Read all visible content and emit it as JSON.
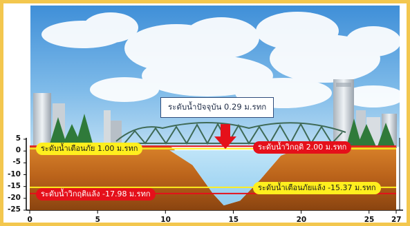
{
  "chart_data": {
    "type": "area",
    "title": "",
    "xlabel": "",
    "ylabel": "",
    "xlim": [
      0,
      27
    ],
    "ylim": [
      -25,
      5
    ],
    "x_ticks": [
      0,
      5,
      10,
      15,
      20,
      25,
      27
    ],
    "y_ticks": [
      5,
      0,
      -5,
      -10,
      -15,
      -20,
      -25
    ],
    "riverbed_profile": {
      "x": [
        0,
        10.3,
        12.0,
        13.5,
        14.3,
        15.5,
        17.0,
        18.5,
        19.5,
        27
      ],
      "y": [
        2.3,
        2.3,
        -6.0,
        -18.0,
        -23.0,
        -21.0,
        -12.0,
        -2.0,
        2.3,
        2.3
      ]
    },
    "current_level": 0.29,
    "reference_lines": [
      {
        "id": "warning_high",
        "y": 1.0,
        "color": "#ffef1e"
      },
      {
        "id": "critical_high",
        "y": 2.0,
        "color": "#e5101a"
      },
      {
        "id": "warning_low",
        "y": -15.37,
        "color": "#ffef1e"
      },
      {
        "id": "critical_low",
        "y": -17.98,
        "color": "#e5101a"
      }
    ]
  },
  "labels": {
    "current": "ระดับน้ำปัจจุบัน 0.29 ม.รทก",
    "warning_high": "ระดับน้ำเตือนภัย 1.00 ม.รทก",
    "critical_high": "ระดับน้ำวิกฤติ 2.00 ม.รทก",
    "critical_low": "ระดับน้ำวิกฤติแล้ง -17.98 ม.รทก",
    "warning_low": "ระดับน้ำเตือนภัยแล้ง -15.37 ม.รทก"
  },
  "axes": {
    "y": [
      "5",
      "0",
      "-5",
      "-10",
      "-15",
      "-20",
      "-25"
    ],
    "x": [
      "0",
      "5",
      "10",
      "15",
      "20",
      "25",
      "27"
    ]
  },
  "colors": {
    "frame": "#f3c74e",
    "sky": "#5ea4e0",
    "soil": "#c86e1c",
    "water": "#a9d8f3",
    "arrow": "#e5101a",
    "bridge": "#3f6a56"
  }
}
